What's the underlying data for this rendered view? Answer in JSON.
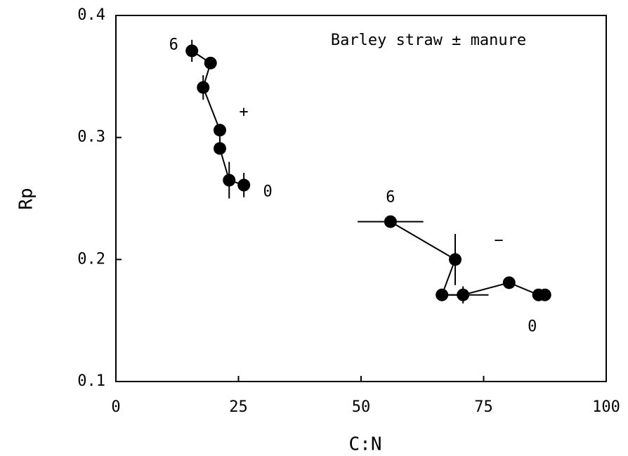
{
  "chart_data": {
    "type": "scatter",
    "title": "Barley straw ± manure",
    "x_label": "C:N",
    "y_label": "Rp",
    "xlim": [
      0,
      100
    ],
    "xticks": [
      0,
      25,
      50,
      75,
      100
    ],
    "ylim": [
      0.1,
      0.4
    ],
    "yticks": [
      0.1,
      0.2,
      0.3,
      0.4
    ],
    "series": [
      {
        "name": "+",
        "color": "#000000",
        "start_label": "6",
        "end_label": "0",
        "x": [
          15.5,
          19.3,
          17.8,
          21.2,
          21.2,
          23.1,
          26.1
        ],
        "y": [
          0.371,
          0.361,
          0.341,
          0.306,
          0.291,
          0.265,
          0.261
        ],
        "yerr": [
          0.009,
          null,
          0.01,
          null,
          null,
          0.015,
          0.01
        ],
        "xerr": [
          null,
          null,
          null,
          null,
          null,
          null,
          null
        ]
      },
      {
        "name": "−",
        "color": "#000000",
        "start_label": "6",
        "end_label": "0",
        "x": [
          56.0,
          69.2,
          66.5,
          70.8,
          80.2,
          86.2,
          87.5
        ],
        "y": [
          0.231,
          0.2,
          0.171,
          0.171,
          0.181,
          0.171,
          0.171
        ],
        "yerr": [
          null,
          0.021,
          null,
          0.007,
          null,
          null,
          null
        ],
        "xerr": [
          6.7,
          null,
          null,
          5.2,
          null,
          null,
          null
        ]
      }
    ]
  }
}
